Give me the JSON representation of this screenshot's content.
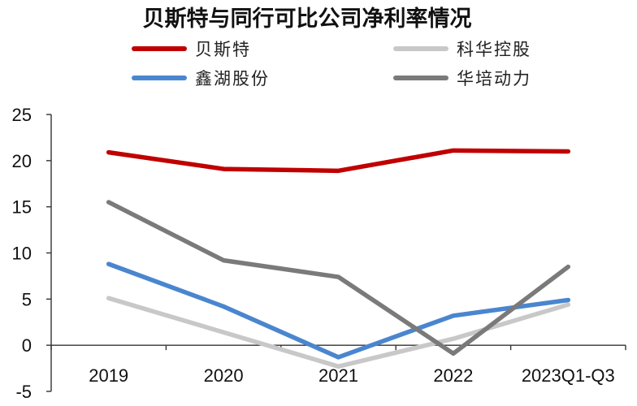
{
  "chart_data": {
    "type": "line",
    "title": "贝斯特与同行可比公司净利率情况",
    "categories": [
      "2019",
      "2020",
      "2021",
      "2022",
      "2023Q1-Q3"
    ],
    "yticks": [
      "25",
      "20",
      "15",
      "10",
      "5",
      "0",
      "-5"
    ],
    "ylim": [
      -5,
      25
    ],
    "legend_placement": "top",
    "grid": false,
    "series": [
      {
        "name": "贝斯特",
        "color": "#c00000",
        "values": [
          20.9,
          19.1,
          18.9,
          21.1,
          21.0
        ]
      },
      {
        "name": "科华控股",
        "color": "#c8c8c8",
        "values": [
          5.1,
          1.4,
          -2.3,
          0.7,
          4.4
        ]
      },
      {
        "name": "鑫湖股份",
        "color": "#4a86cf",
        "values": [
          8.8,
          4.2,
          -1.3,
          3.2,
          4.9
        ]
      },
      {
        "name": "华培动力",
        "color": "#7a7a7a",
        "values": [
          15.5,
          9.2,
          7.4,
          -0.9,
          8.5
        ]
      }
    ]
  }
}
